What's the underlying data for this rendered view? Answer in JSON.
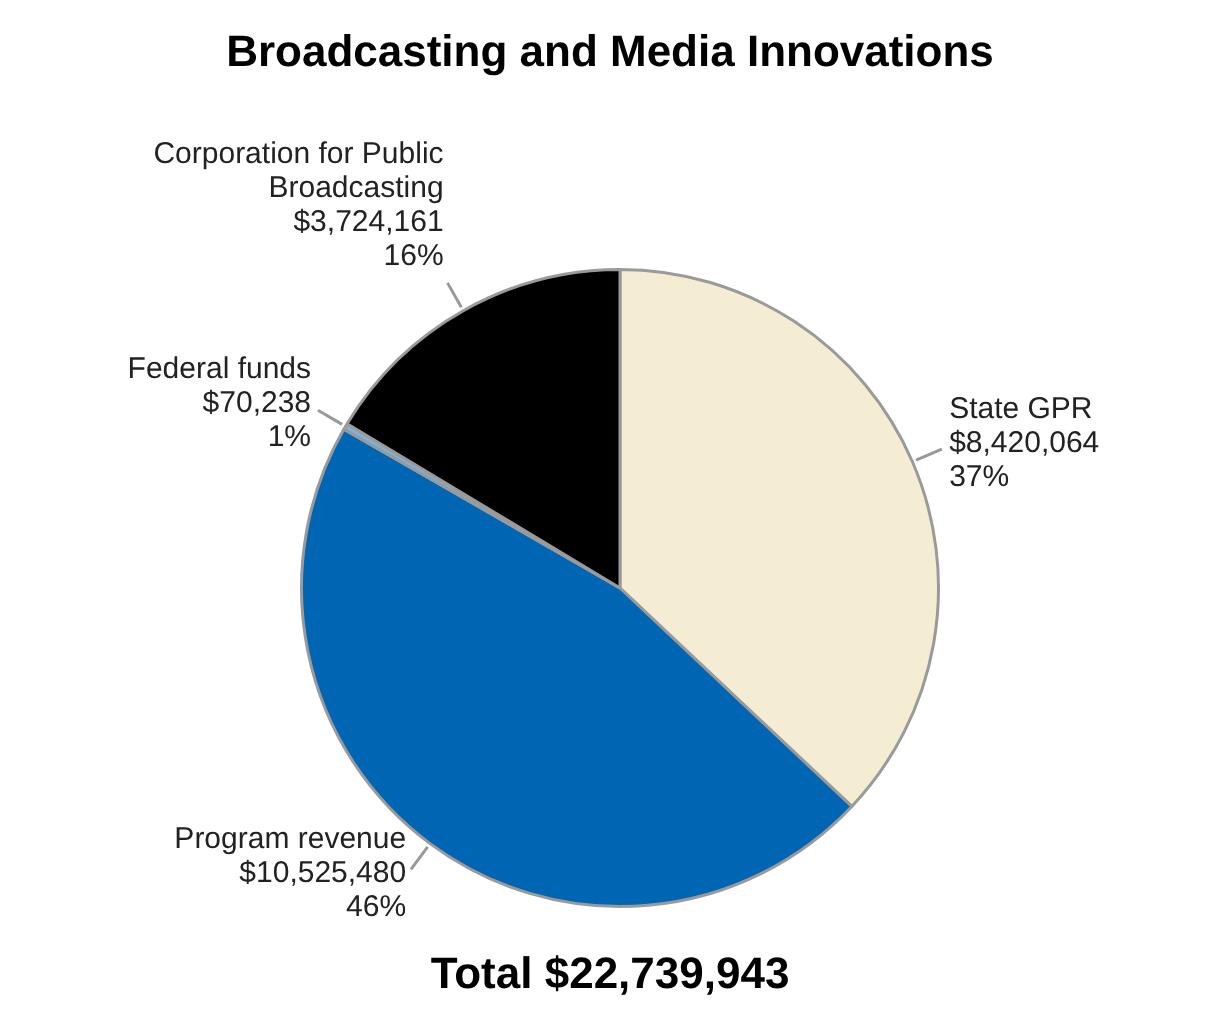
{
  "chart_data": {
    "type": "pie",
    "title": "Broadcasting and Media Innovations",
    "categories": [
      "State GPR",
      "Program revenue",
      "Federal funds",
      "Corporation for Public Broadcasting"
    ],
    "values": [
      8420064,
      10525480,
      70238,
      3724161
    ],
    "colors": [
      "#f5edd3",
      "#0066b3",
      "#7eb2de",
      "#000000"
    ],
    "value_labels": [
      "$8,420,064\n37%",
      "$10,525,480\n46%",
      "$70,238\n1%",
      "$3,724,161\n16%"
    ],
    "annotations": [
      "Total $22,739,943"
    ],
    "legend": false
  }
}
